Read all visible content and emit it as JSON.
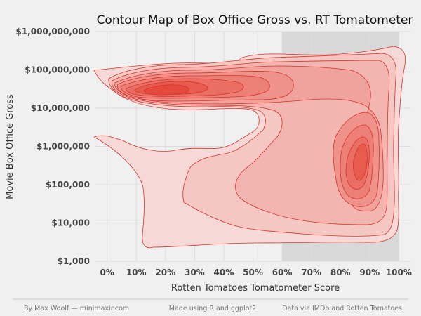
{
  "chart_data": {
    "type": "contour",
    "title": "Contour Map of Box Office Gross vs. RT Tomatometer",
    "xlabel": "Rotten Tomatoes Tomatometer Score",
    "ylabel": "Movie Box Office Gross",
    "x_ticks": [
      "0%",
      "10%",
      "20%",
      "30%",
      "40%",
      "50%",
      "60%",
      "70%",
      "80%",
      "90%",
      "100%"
    ],
    "x_tick_values": [
      0,
      10,
      20,
      30,
      40,
      50,
      60,
      70,
      80,
      90,
      100
    ],
    "y_ticks": [
      "$1,000",
      "$10,000",
      "$100,000",
      "$1,000,000",
      "$10,000,000",
      "$100,000,000",
      "$1,000,000,000"
    ],
    "y_tick_values": [
      1000,
      10000,
      100000,
      1000000,
      10000000,
      100000000,
      1000000000
    ],
    "xlim": [
      -4,
      104
    ],
    "ylim": [
      1000,
      1000000000
    ],
    "y_scale": "log10",
    "grid": true,
    "shaded_region": {
      "x_from": 60,
      "x_to": 100
    },
    "density_levels": 9,
    "density_peaks": [
      {
        "x": 21,
        "y": 30000000
      },
      {
        "x": 88,
        "y": 400000
      }
    ],
    "colors": {
      "fill_light": "#f6d9d6",
      "fill_dark": "#e64a3d",
      "stroke": "#d6332b",
      "background": "#f0f0f0",
      "shade": "#d8d8d8",
      "grid": "#dcdcdc"
    }
  },
  "footer": {
    "left": "By Max Woolf — minimaxir.com",
    "center": "Made using R and ggplot2",
    "right": "Data via IMDb and Rotten Tomatoes"
  }
}
